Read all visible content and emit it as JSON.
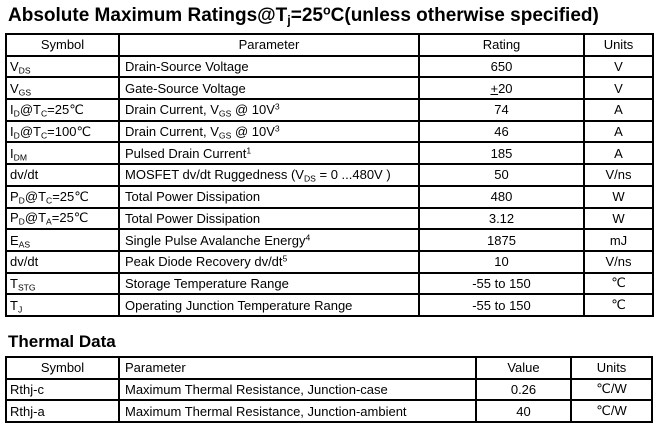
{
  "theme": {
    "background": "#ffffff",
    "text": "#000000",
    "border": "#000000"
  },
  "abs_max": {
    "title_rich": [
      [
        "n",
        "Absolute Maximum Ratings@T"
      ],
      [
        "sub",
        "j"
      ],
      [
        "n",
        "=25"
      ],
      [
        "sup",
        "o"
      ],
      [
        "n",
        "C(unless otherwise specified)"
      ]
    ],
    "columns": [
      "Symbol",
      "Parameter",
      "Rating",
      "Units"
    ],
    "rows": [
      {
        "symbol": [
          [
            "n",
            "V"
          ],
          [
            "sub",
            "DS"
          ]
        ],
        "parameter": [
          [
            "n",
            "Drain-Source Voltage"
          ]
        ],
        "rating": [
          [
            "n",
            "650"
          ]
        ],
        "units": [
          [
            "n",
            "V"
          ]
        ]
      },
      {
        "symbol": [
          [
            "n",
            "V"
          ],
          [
            "sub",
            "GS"
          ]
        ],
        "parameter": [
          [
            "n",
            "Gate-Source Voltage"
          ]
        ],
        "rating": [
          [
            "u",
            "+"
          ],
          [
            "n",
            "20"
          ]
        ],
        "units": [
          [
            "n",
            "V"
          ]
        ]
      },
      {
        "symbol": [
          [
            "n",
            "I"
          ],
          [
            "sub",
            "D"
          ],
          [
            "n",
            "@T"
          ],
          [
            "sub",
            "C"
          ],
          [
            "n",
            "=25℃"
          ]
        ],
        "parameter": [
          [
            "n",
            "Drain Current, V"
          ],
          [
            "sub",
            "GS"
          ],
          [
            "n",
            " @ 10V"
          ],
          [
            "sup",
            "3"
          ]
        ],
        "rating": [
          [
            "n",
            "74"
          ]
        ],
        "units": [
          [
            "n",
            "A"
          ]
        ]
      },
      {
        "symbol": [
          [
            "n",
            "I"
          ],
          [
            "sub",
            "D"
          ],
          [
            "n",
            "@T"
          ],
          [
            "sub",
            "C"
          ],
          [
            "n",
            "=100℃"
          ]
        ],
        "parameter": [
          [
            "n",
            "Drain Current, V"
          ],
          [
            "sub",
            "GS"
          ],
          [
            "n",
            " @ 10V"
          ],
          [
            "sup",
            "3"
          ]
        ],
        "rating": [
          [
            "n",
            "46"
          ]
        ],
        "units": [
          [
            "n",
            "A"
          ]
        ]
      },
      {
        "symbol": [
          [
            "n",
            "I"
          ],
          [
            "sub",
            "DM"
          ]
        ],
        "parameter": [
          [
            "n",
            "Pulsed Drain Current"
          ],
          [
            "sup",
            "1"
          ]
        ],
        "rating": [
          [
            "n",
            "185"
          ]
        ],
        "units": [
          [
            "n",
            "A"
          ]
        ]
      },
      {
        "symbol": [
          [
            "n",
            "dv/dt"
          ]
        ],
        "parameter": [
          [
            "n",
            "MOSFET dv/dt Ruggedness (V"
          ],
          [
            "sub",
            "DS"
          ],
          [
            "n",
            " = 0 ...480V )"
          ]
        ],
        "rating": [
          [
            "n",
            "50"
          ]
        ],
        "units": [
          [
            "n",
            "V/ns"
          ]
        ]
      },
      {
        "symbol": [
          [
            "n",
            "P"
          ],
          [
            "sub",
            "D"
          ],
          [
            "n",
            "@T"
          ],
          [
            "sub",
            "C"
          ],
          [
            "n",
            "=25℃"
          ]
        ],
        "parameter": [
          [
            "n",
            "Total Power Dissipation"
          ]
        ],
        "rating": [
          [
            "n",
            "480"
          ]
        ],
        "units": [
          [
            "n",
            "W"
          ]
        ]
      },
      {
        "symbol": [
          [
            "n",
            "P"
          ],
          [
            "sub",
            "D"
          ],
          [
            "n",
            "@T"
          ],
          [
            "sub",
            "A"
          ],
          [
            "n",
            "=25℃"
          ]
        ],
        "parameter": [
          [
            "n",
            "Total Power Dissipation"
          ]
        ],
        "rating": [
          [
            "n",
            "3.12"
          ]
        ],
        "units": [
          [
            "n",
            "W"
          ]
        ]
      },
      {
        "symbol": [
          [
            "n",
            "E"
          ],
          [
            "sub",
            "AS"
          ]
        ],
        "parameter": [
          [
            "n",
            "Single Pulse Avalanche Energy"
          ],
          [
            "sup",
            "4"
          ]
        ],
        "rating": [
          [
            "n",
            "1875"
          ]
        ],
        "units": [
          [
            "n",
            "mJ"
          ]
        ]
      },
      {
        "symbol": [
          [
            "n",
            "dv/dt"
          ]
        ],
        "parameter": [
          [
            "n",
            "Peak Diode Recovery dv/dt"
          ],
          [
            "sup",
            "5"
          ]
        ],
        "rating": [
          [
            "n",
            "10"
          ]
        ],
        "units": [
          [
            "n",
            "V/ns"
          ]
        ]
      },
      {
        "symbol": [
          [
            "n",
            "T"
          ],
          [
            "sub",
            "STG"
          ]
        ],
        "parameter": [
          [
            "n",
            "Storage Temperature Range"
          ]
        ],
        "rating": [
          [
            "n",
            "-55 to 150"
          ]
        ],
        "units": [
          [
            "n",
            "℃"
          ]
        ]
      },
      {
        "symbol": [
          [
            "n",
            "T"
          ],
          [
            "sub",
            "J"
          ]
        ],
        "parameter": [
          [
            "n",
            "Operating Junction Temperature Range"
          ]
        ],
        "rating": [
          [
            "n",
            "-55 to 150"
          ]
        ],
        "units": [
          [
            "n",
            "℃"
          ]
        ]
      }
    ]
  },
  "thermal": {
    "title": "Thermal Data",
    "columns": [
      "Symbol",
      "Parameter",
      "Value",
      "Units"
    ],
    "rows": [
      {
        "symbol": [
          [
            "n",
            "Rthj-c"
          ]
        ],
        "parameter": [
          [
            "n",
            "Maximum Thermal Resistance, Junction-case"
          ]
        ],
        "value": [
          [
            "n",
            "0.26"
          ]
        ],
        "units": [
          [
            "n",
            "℃/W"
          ]
        ]
      },
      {
        "symbol": [
          [
            "n",
            "Rthj-a"
          ]
        ],
        "parameter": [
          [
            "n",
            "Maximum Thermal Resistance, Junction-ambient"
          ]
        ],
        "value": [
          [
            "n",
            "40"
          ]
        ],
        "units": [
          [
            "n",
            "℃/W"
          ]
        ]
      }
    ]
  }
}
